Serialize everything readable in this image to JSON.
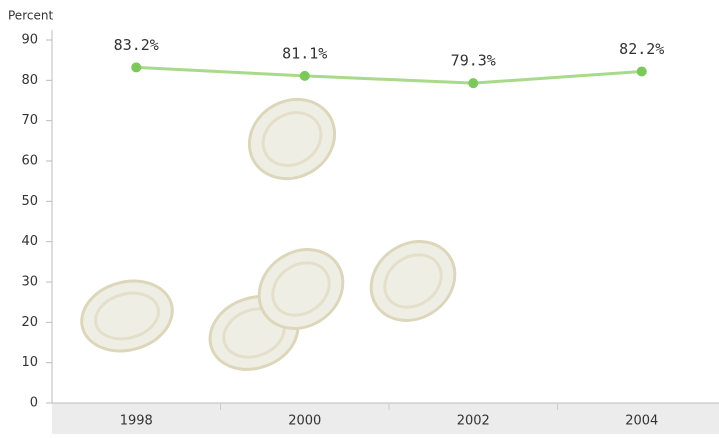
{
  "chart_data": {
    "type": "line",
    "y_axis_label": "Percent",
    "categories": [
      "1998",
      "2000",
      "2002",
      "2004"
    ],
    "series": [
      {
        "name": "Percent",
        "color": "#a9d98b",
        "marker_color": "#7cc85c",
        "values": [
          83.2,
          81.1,
          79.3,
          82.2
        ],
        "value_labels": [
          "83.2%",
          "81.1%",
          "79.3%",
          "82.2%"
        ]
      }
    ],
    "ylim": [
      0,
      90
    ],
    "yticks": [
      0,
      10,
      20,
      30,
      40,
      50,
      60,
      70,
      80,
      90
    ]
  }
}
